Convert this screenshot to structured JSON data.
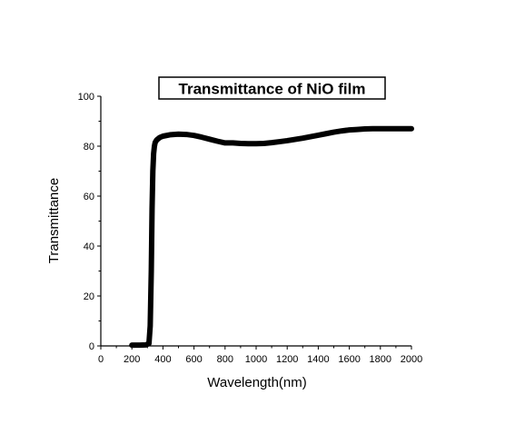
{
  "chart_data": {
    "type": "line",
    "title": "Transmittance of NiO film",
    "xlabel": "Wavelength(nm)",
    "ylabel": "Transmittance",
    "xlim": [
      0,
      2000
    ],
    "ylim": [
      0,
      100
    ],
    "xticks": [
      0,
      200,
      400,
      600,
      800,
      1000,
      1200,
      1400,
      1600,
      1800,
      2000
    ],
    "yticks": [
      0,
      20,
      40,
      60,
      80,
      100
    ],
    "grid": false,
    "legend": "none",
    "line_color": "#000000",
    "series": [
      {
        "x": [
          200,
          250,
          290,
          310,
          318,
          325,
          330,
          335,
          340,
          345,
          350,
          360,
          380,
          400,
          450,
          500,
          550,
          600,
          650,
          700,
          750,
          800,
          850,
          900,
          950,
          1000,
          1050,
          1100,
          1150,
          1200,
          1250,
          1300,
          1350,
          1400,
          1450,
          1500,
          1550,
          1600,
          1650,
          1700,
          1750,
          1800,
          1850,
          1900,
          1950,
          2000
        ],
        "y": [
          0.3,
          0.3,
          0.4,
          1,
          8,
          30,
          55,
          70,
          77,
          80,
          81.5,
          82.5,
          83.5,
          84,
          84.6,
          84.8,
          84.7,
          84.3,
          83.6,
          82.8,
          82,
          81.3,
          81.3,
          81.1,
          81,
          81,
          81.1,
          81.4,
          81.8,
          82.2,
          82.7,
          83.2,
          83.8,
          84.4,
          85,
          85.6,
          86.1,
          86.5,
          86.7,
          86.9,
          87,
          87,
          87,
          87,
          87,
          87
        ]
      }
    ]
  }
}
